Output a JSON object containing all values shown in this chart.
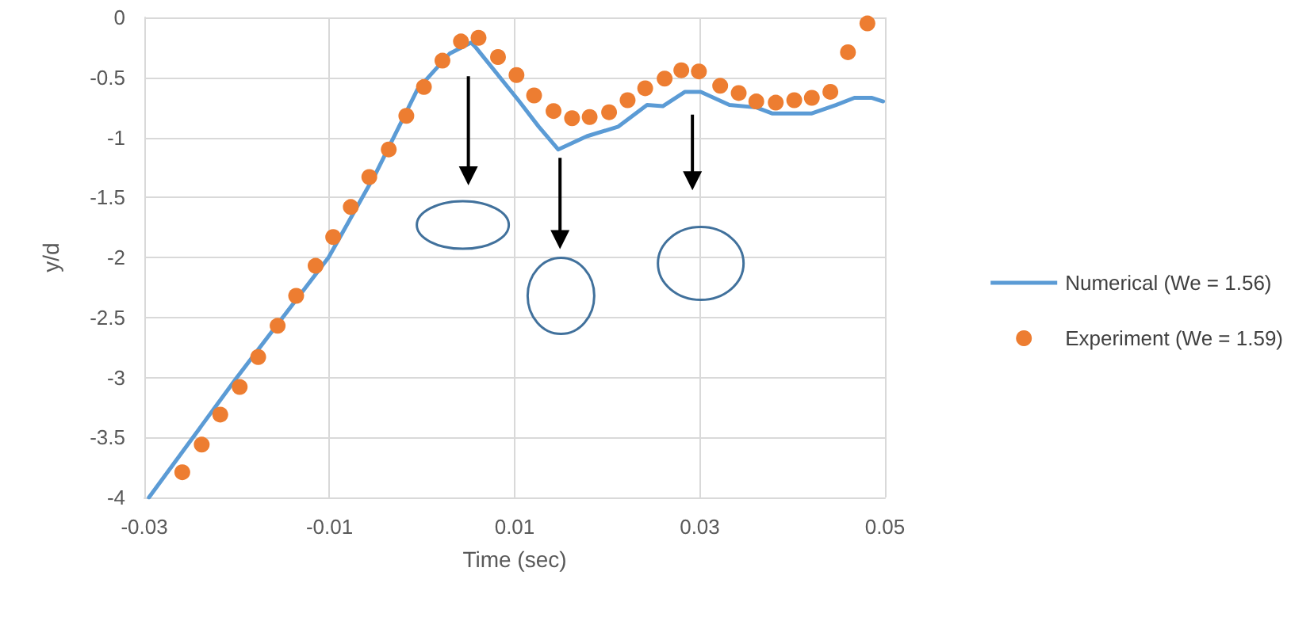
{
  "chart_data": {
    "type": "line",
    "xlabel": "Time (sec)",
    "ylabel": "y/d",
    "xlim": [
      -0.03,
      0.05
    ],
    "xticks": [
      -0.03,
      -0.01,
      0.01,
      0.03,
      0.05
    ],
    "ylim": [
      -4,
      0
    ],
    "yticks": [
      -4,
      -3.5,
      -3,
      -2.5,
      -2,
      -1.5,
      -1,
      -0.5,
      0
    ],
    "grid": true,
    "legend": "right",
    "series": [
      {
        "name": "Numerical (We = 1.56)",
        "color": "#5b9bd5",
        "marker": "none",
        "x": [
          -0.0295,
          -0.02,
          -0.0101,
          -0.005,
          -0.0005,
          0.003,
          0.0053,
          0.0058,
          0.0104,
          0.0126,
          0.0147,
          0.0178,
          0.0212,
          0.0243,
          0.026,
          0.0284,
          0.0301,
          0.0332,
          0.0361,
          0.0378,
          0.0421,
          0.0447,
          0.0467,
          0.0486,
          0.0498
        ],
        "values": [
          -4,
          -3.0,
          -2.0,
          -1.3,
          -0.6,
          -0.3,
          -0.21,
          -0.25,
          -0.69,
          -0.91,
          -1.1,
          -0.99,
          -0.91,
          -0.73,
          -0.74,
          -0.62,
          -0.62,
          -0.73,
          -0.75,
          -0.8,
          -0.8,
          -0.73,
          -0.67,
          -0.67,
          -0.7
        ]
      },
      {
        "name": "Experiment (We = 1.59)",
        "type": "scatter",
        "color": "#ed7d31",
        "marker": "circle",
        "x": [
          -0.0259,
          -0.0238,
          -0.0218,
          -0.0197,
          -0.0177,
          -0.0156,
          -0.0136,
          -0.0115,
          -0.0096,
          -0.0077,
          -0.0057,
          -0.0036,
          -0.0017,
          0.0002,
          0.0022,
          0.0042,
          0.0061,
          0.0082,
          0.0102,
          0.0121,
          0.0142,
          0.0162,
          0.0181,
          0.0202,
          0.0222,
          0.0241,
          0.0262,
          0.028,
          0.0299,
          0.0322,
          0.0342,
          0.0361,
          0.0382,
          0.0402,
          0.0421,
          0.0441,
          0.046,
          0.0481
        ],
        "values": [
          -3.79,
          -3.56,
          -3.31,
          -3.08,
          -2.83,
          -2.57,
          -2.32,
          -2.07,
          -1.83,
          -1.58,
          -1.33,
          -1.1,
          -0.82,
          -0.58,
          -0.36,
          -0.2,
          -0.17,
          -0.33,
          -0.48,
          -0.65,
          -0.78,
          -0.84,
          -0.83,
          -0.79,
          -0.69,
          -0.59,
          -0.51,
          -0.44,
          -0.45,
          -0.57,
          -0.63,
          -0.7,
          -0.71,
          -0.69,
          -0.67,
          -0.62,
          -0.29,
          -0.05
        ]
      }
    ]
  }
}
